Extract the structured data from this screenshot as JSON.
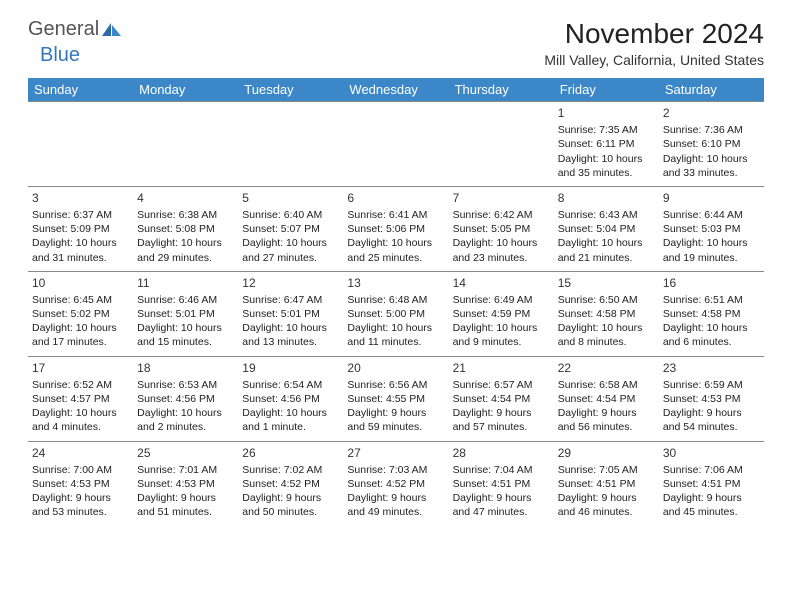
{
  "logo": {
    "text1": "General",
    "text2": "Blue"
  },
  "title": "November 2024",
  "location": "Mill Valley, California, United States",
  "colors": {
    "header_bg": "#3b87c8",
    "header_fg": "#ffffff",
    "border": "#888888",
    "logo_gray": "#555555",
    "logo_blue": "#3277bb",
    "title_color": "#222222"
  },
  "dayLabels": [
    "Sunday",
    "Monday",
    "Tuesday",
    "Wednesday",
    "Thursday",
    "Friday",
    "Saturday"
  ],
  "weeks": [
    [
      null,
      null,
      null,
      null,
      null,
      {
        "n": "1",
        "sr": "7:35 AM",
        "ss": "6:11 PM",
        "dl": "10 hours and 35 minutes."
      },
      {
        "n": "2",
        "sr": "7:36 AM",
        "ss": "6:10 PM",
        "dl": "10 hours and 33 minutes."
      }
    ],
    [
      {
        "n": "3",
        "sr": "6:37 AM",
        "ss": "5:09 PM",
        "dl": "10 hours and 31 minutes."
      },
      {
        "n": "4",
        "sr": "6:38 AM",
        "ss": "5:08 PM",
        "dl": "10 hours and 29 minutes."
      },
      {
        "n": "5",
        "sr": "6:40 AM",
        "ss": "5:07 PM",
        "dl": "10 hours and 27 minutes."
      },
      {
        "n": "6",
        "sr": "6:41 AM",
        "ss": "5:06 PM",
        "dl": "10 hours and 25 minutes."
      },
      {
        "n": "7",
        "sr": "6:42 AM",
        "ss": "5:05 PM",
        "dl": "10 hours and 23 minutes."
      },
      {
        "n": "8",
        "sr": "6:43 AM",
        "ss": "5:04 PM",
        "dl": "10 hours and 21 minutes."
      },
      {
        "n": "9",
        "sr": "6:44 AM",
        "ss": "5:03 PM",
        "dl": "10 hours and 19 minutes."
      }
    ],
    [
      {
        "n": "10",
        "sr": "6:45 AM",
        "ss": "5:02 PM",
        "dl": "10 hours and 17 minutes."
      },
      {
        "n": "11",
        "sr": "6:46 AM",
        "ss": "5:01 PM",
        "dl": "10 hours and 15 minutes."
      },
      {
        "n": "12",
        "sr": "6:47 AM",
        "ss": "5:01 PM",
        "dl": "10 hours and 13 minutes."
      },
      {
        "n": "13",
        "sr": "6:48 AM",
        "ss": "5:00 PM",
        "dl": "10 hours and 11 minutes."
      },
      {
        "n": "14",
        "sr": "6:49 AM",
        "ss": "4:59 PM",
        "dl": "10 hours and 9 minutes."
      },
      {
        "n": "15",
        "sr": "6:50 AM",
        "ss": "4:58 PM",
        "dl": "10 hours and 8 minutes."
      },
      {
        "n": "16",
        "sr": "6:51 AM",
        "ss": "4:58 PM",
        "dl": "10 hours and 6 minutes."
      }
    ],
    [
      {
        "n": "17",
        "sr": "6:52 AM",
        "ss": "4:57 PM",
        "dl": "10 hours and 4 minutes."
      },
      {
        "n": "18",
        "sr": "6:53 AM",
        "ss": "4:56 PM",
        "dl": "10 hours and 2 minutes."
      },
      {
        "n": "19",
        "sr": "6:54 AM",
        "ss": "4:56 PM",
        "dl": "10 hours and 1 minute."
      },
      {
        "n": "20",
        "sr": "6:56 AM",
        "ss": "4:55 PM",
        "dl": "9 hours and 59 minutes."
      },
      {
        "n": "21",
        "sr": "6:57 AM",
        "ss": "4:54 PM",
        "dl": "9 hours and 57 minutes."
      },
      {
        "n": "22",
        "sr": "6:58 AM",
        "ss": "4:54 PM",
        "dl": "9 hours and 56 minutes."
      },
      {
        "n": "23",
        "sr": "6:59 AM",
        "ss": "4:53 PM",
        "dl": "9 hours and 54 minutes."
      }
    ],
    [
      {
        "n": "24",
        "sr": "7:00 AM",
        "ss": "4:53 PM",
        "dl": "9 hours and 53 minutes."
      },
      {
        "n": "25",
        "sr": "7:01 AM",
        "ss": "4:53 PM",
        "dl": "9 hours and 51 minutes."
      },
      {
        "n": "26",
        "sr": "7:02 AM",
        "ss": "4:52 PM",
        "dl": "9 hours and 50 minutes."
      },
      {
        "n": "27",
        "sr": "7:03 AM",
        "ss": "4:52 PM",
        "dl": "9 hours and 49 minutes."
      },
      {
        "n": "28",
        "sr": "7:04 AM",
        "ss": "4:51 PM",
        "dl": "9 hours and 47 minutes."
      },
      {
        "n": "29",
        "sr": "7:05 AM",
        "ss": "4:51 PM",
        "dl": "9 hours and 46 minutes."
      },
      {
        "n": "30",
        "sr": "7:06 AM",
        "ss": "4:51 PM",
        "dl": "9 hours and 45 minutes."
      }
    ]
  ],
  "labels": {
    "sunrise": "Sunrise:",
    "sunset": "Sunset:",
    "daylight": "Daylight:"
  }
}
